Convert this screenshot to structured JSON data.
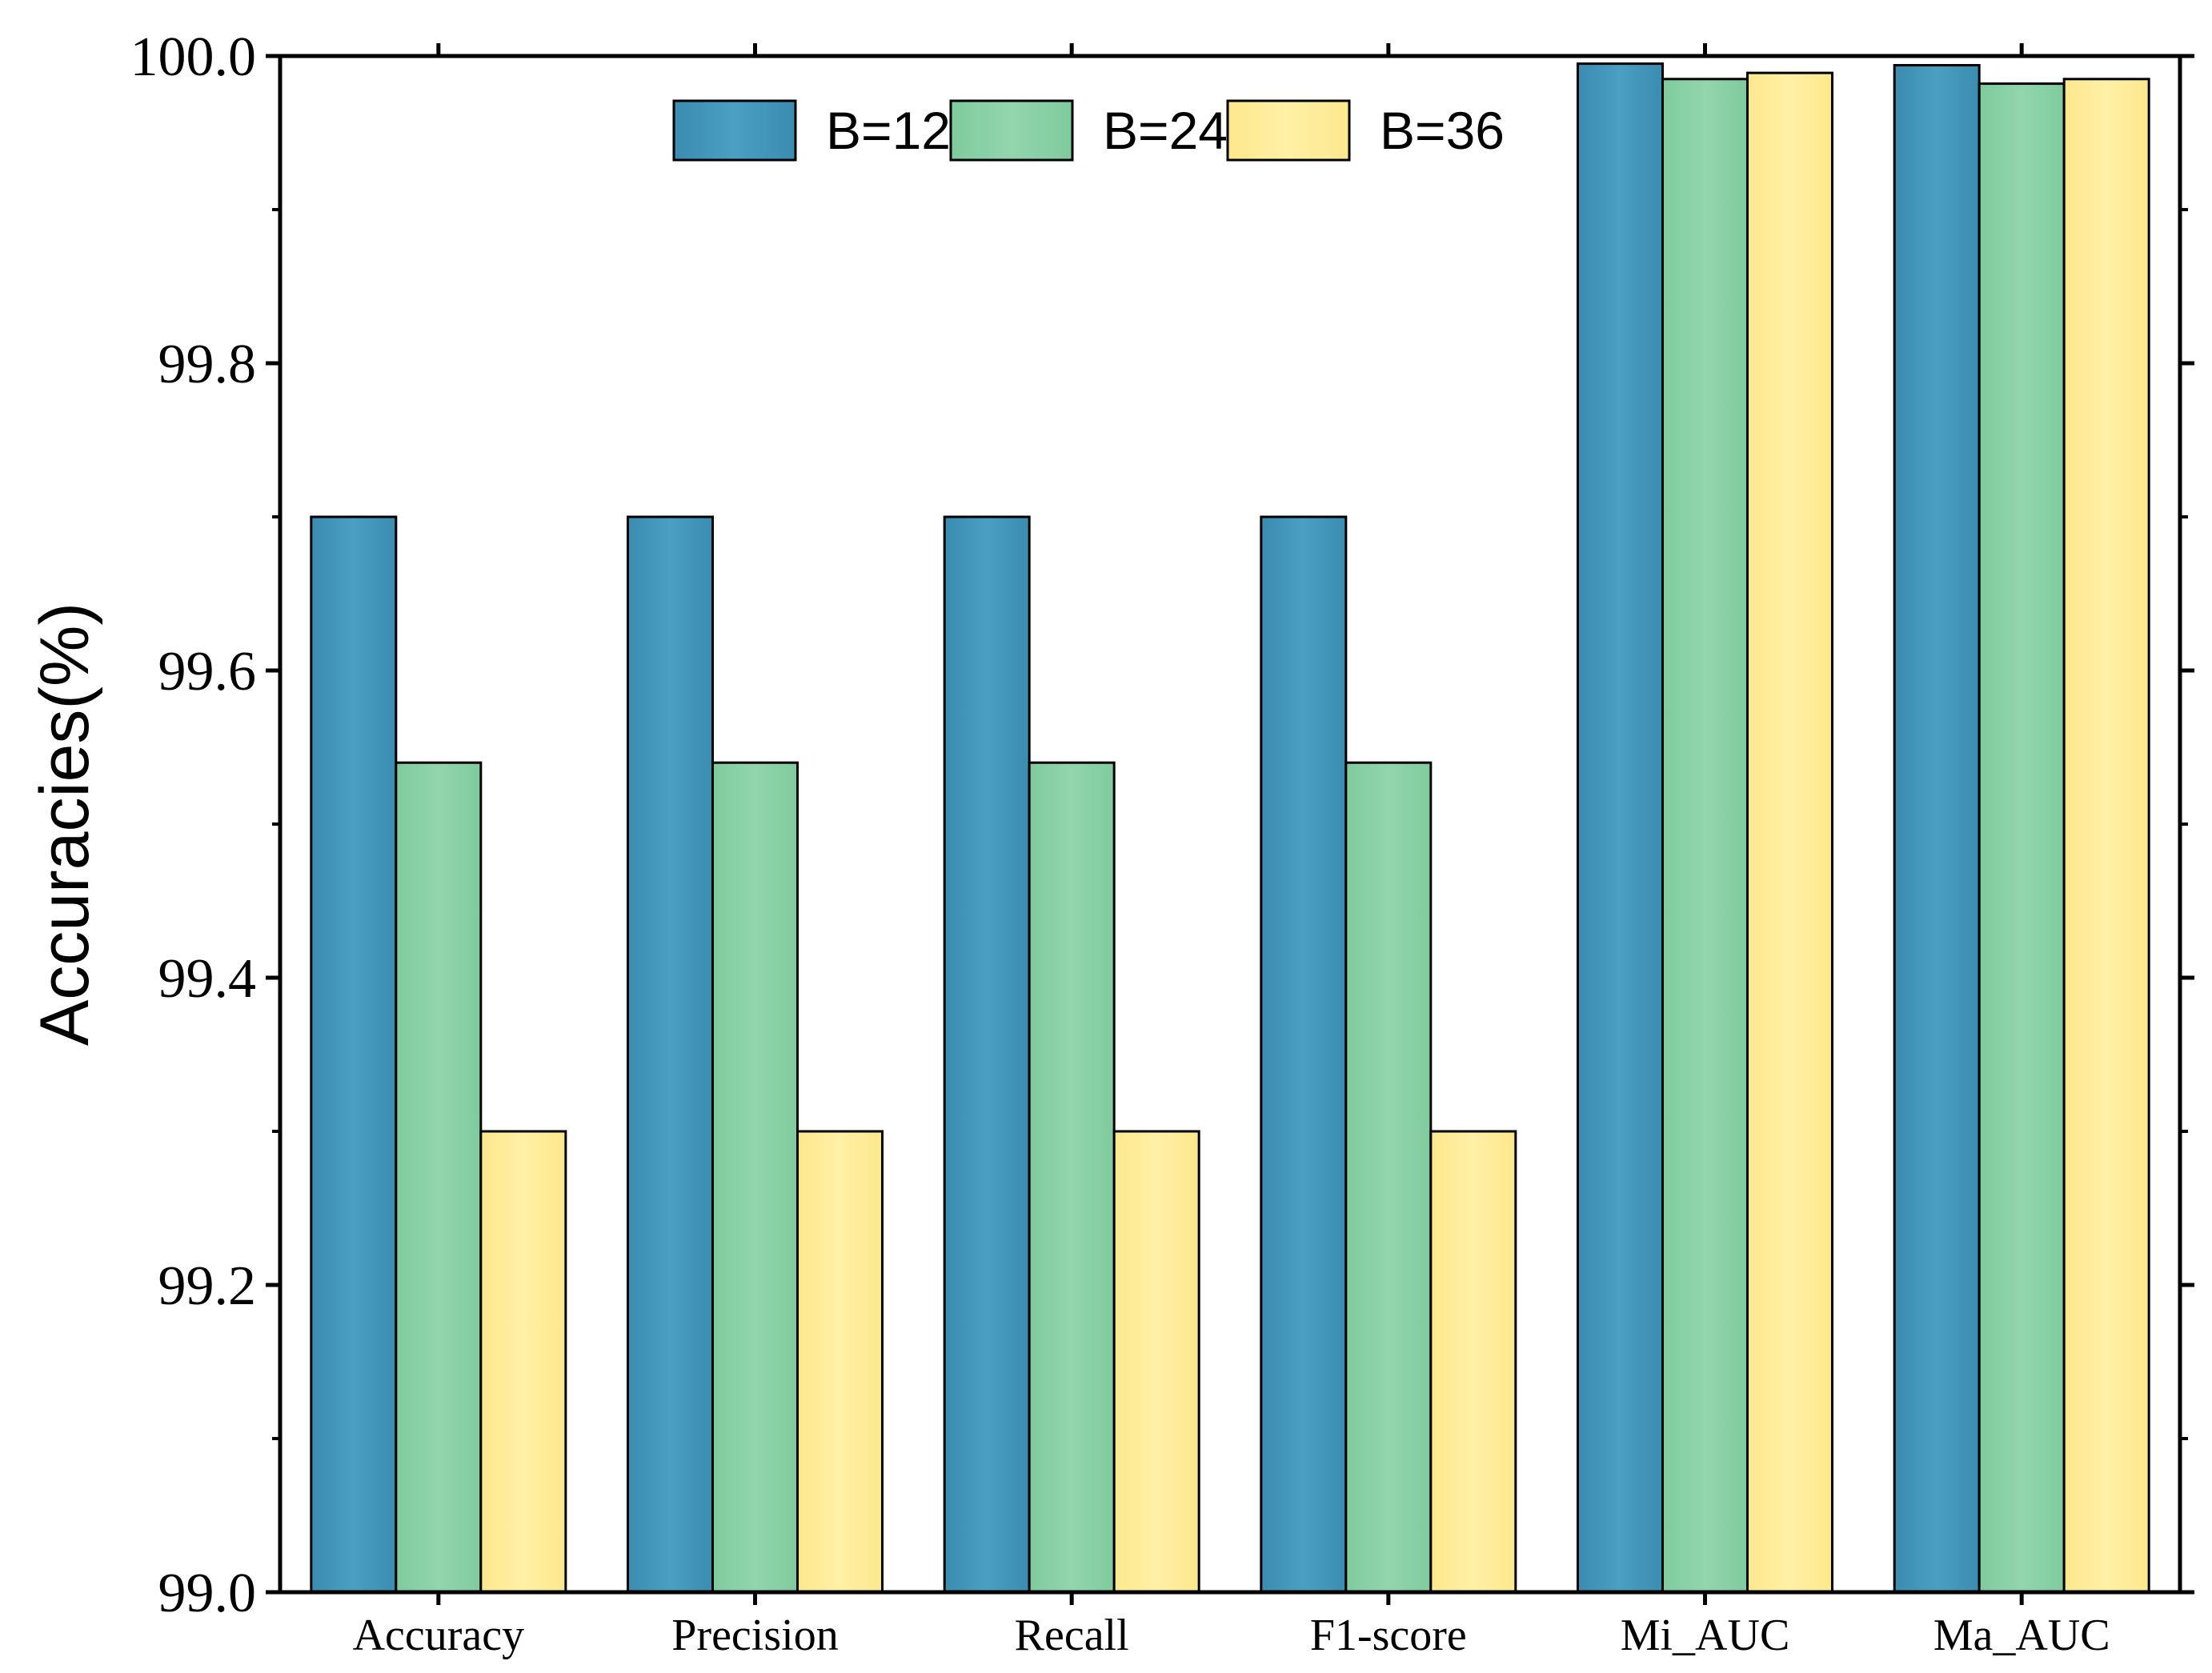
{
  "chart_data": {
    "type": "bar",
    "title": "",
    "xlabel": "",
    "ylabel": "Accuracies(%)",
    "ylim": [
      99.0,
      100.0
    ],
    "yticks": [
      "99.0",
      "99.2",
      "99.4",
      "99.6",
      "99.8",
      "100.0"
    ],
    "categories": [
      "Accuracy",
      "Precision",
      "Recall",
      "F1-score",
      "Mi_AUC",
      "Ma_AUC"
    ],
    "series": [
      {
        "name": "B=12",
        "color": "#3f97bb",
        "values": [
          99.7,
          99.7,
          99.7,
          99.7,
          99.995,
          99.994
        ]
      },
      {
        "name": "B=24",
        "color": "#86cfa4",
        "values": [
          99.54,
          99.54,
          99.54,
          99.54,
          99.985,
          99.982
        ]
      },
      {
        "name": "B=36",
        "color": "#feeb95",
        "values": [
          99.3,
          99.3,
          99.3,
          99.3,
          99.989,
          99.985
        ]
      }
    ],
    "legend_position": "top-center",
    "grid": false
  }
}
